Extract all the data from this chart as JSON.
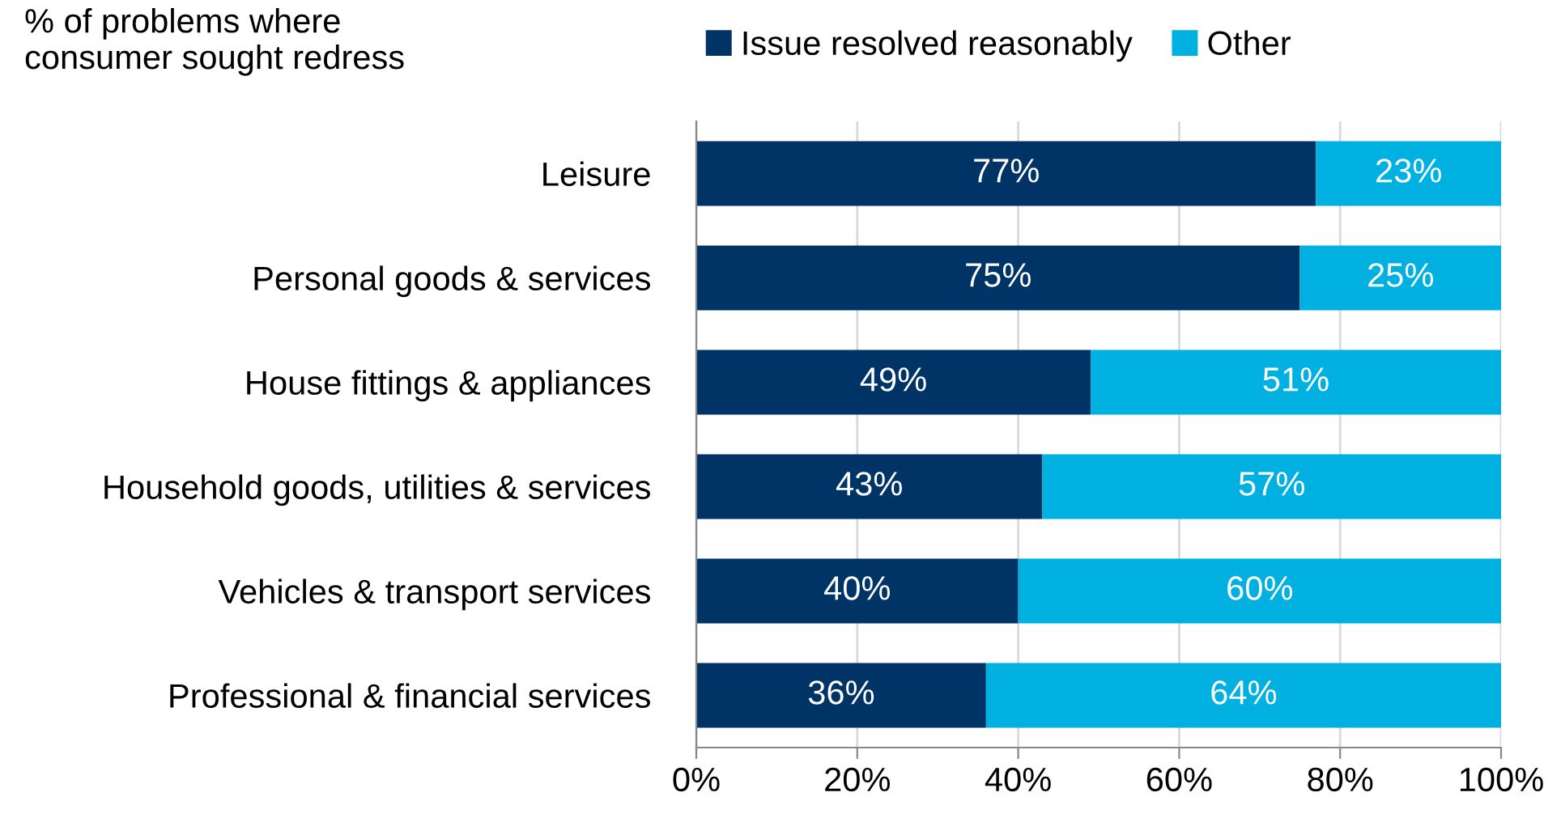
{
  "chart_data": {
    "type": "bar",
    "orientation": "horizontal",
    "stacked": true,
    "title": "% of problems where\nconsumer sought redress",
    "categories": [
      "Leisure",
      "Personal goods & services",
      "House fittings & appliances",
      "Household goods, utilities & services",
      "Vehicles & transport services",
      "Professional & financial services"
    ],
    "series": [
      {
        "name": "Issue resolved reasonably",
        "color": "#003366",
        "values": [
          77,
          75,
          49,
          43,
          40,
          36
        ],
        "value_labels": [
          "77%",
          "75%",
          "49%",
          "43%",
          "40%",
          "36%"
        ]
      },
      {
        "name": "Other",
        "color": "#00b0e0",
        "values": [
          23,
          25,
          51,
          57,
          60,
          64
        ],
        "value_labels": [
          "23%",
          "25%",
          "51%",
          "57%",
          "60%",
          "64%"
        ]
      }
    ],
    "xlim": [
      0,
      100
    ],
    "xticks": [
      {
        "value": 0,
        "label": "0%"
      },
      {
        "value": 20,
        "label": "20%"
      },
      {
        "value": 40,
        "label": "40%"
      },
      {
        "value": 60,
        "label": "60%"
      },
      {
        "value": 80,
        "label": "80%"
      },
      {
        "value": 100,
        "label": "100%"
      }
    ],
    "grid": "x",
    "legend": "top"
  }
}
